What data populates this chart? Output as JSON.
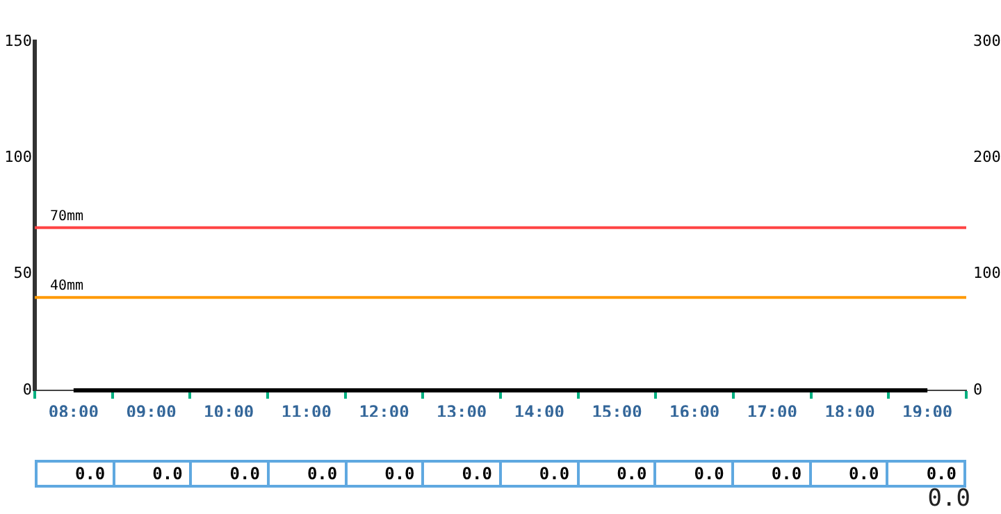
{
  "chart_data": {
    "type": "bar",
    "categories": [
      "08:00",
      "09:00",
      "10:00",
      "11:00",
      "12:00",
      "13:00",
      "14:00",
      "15:00",
      "16:00",
      "17:00",
      "18:00",
      "19:00"
    ],
    "series": [
      {
        "type": "bar",
        "color": "#3399ff",
        "values": [
          0,
          0,
          0,
          0,
          0,
          0,
          0,
          0,
          0,
          0,
          0,
          0
        ],
        "value_labels": [
          "0.0",
          "0.0",
          "0.0",
          "0.0",
          "0.0",
          "0.0",
          "0.0",
          "0.0",
          "0.0",
          "0.0",
          "0.0",
          "0.0"
        ]
      },
      {
        "type": "line",
        "axis": "y2",
        "color": "#000000",
        "marker": "none",
        "values": [
          0,
          0,
          0,
          0,
          0,
          0,
          0,
          0,
          0,
          0,
          0,
          0
        ]
      }
    ],
    "ylim": [
      0,
      150
    ],
    "yticks": [
      0,
      50,
      100,
      150
    ],
    "y2lim": [
      0,
      300
    ],
    "y2ticks": [
      0,
      100,
      200,
      300
    ],
    "ref_lines": [
      {
        "axis": "y",
        "value": 70,
        "label": "70mm",
        "color": "#ff4444"
      },
      {
        "axis": "y",
        "value": 40,
        "label": "40mm",
        "color": "#ff9900"
      }
    ],
    "annotations": [
      "0.0"
    ],
    "grid": false,
    "legend": false
  }
}
